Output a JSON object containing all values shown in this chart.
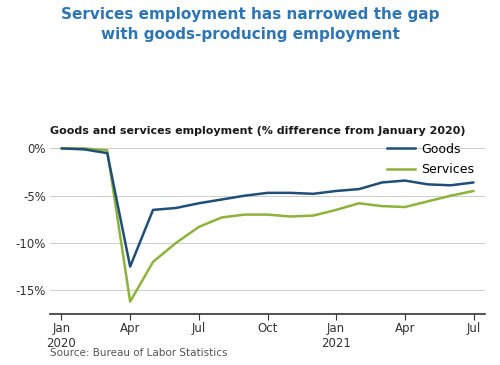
{
  "title": "Services employment has narrowed the gap\nwith goods-producing employment",
  "subtitle": "Goods and services employment (% difference from January 2020)",
  "source": "Source: Bureau of Labor Statistics",
  "title_color": "#2E75B6",
  "subtitle_color": "#1a1a1a",
  "background_color": "#FFFFFF",
  "goods_color": "#1F4E79",
  "services_color": "#8DB33A",
  "x_tick_labels": [
    "Jan\n2020",
    "Apr",
    "Jul",
    "Oct",
    "Jan\n2021",
    "Apr",
    "Jul"
  ],
  "x_tick_positions": [
    0,
    3,
    6,
    9,
    12,
    15,
    18
  ],
  "ylim": [
    -17.5,
    1.8
  ],
  "yticks": [
    0,
    -5,
    -10,
    -15
  ],
  "ytick_labels": [
    "0%",
    "-5%",
    "-10%",
    "-15%"
  ],
  "goods_data": {
    "x": [
      0,
      1,
      2,
      3,
      4,
      5,
      6,
      7,
      8,
      9,
      10,
      11,
      12,
      13,
      14,
      15,
      16,
      17,
      18
    ],
    "y": [
      0.0,
      -0.1,
      -0.5,
      -12.5,
      -6.5,
      -6.3,
      -5.8,
      -5.4,
      -5.0,
      -4.7,
      -4.7,
      -4.8,
      -4.5,
      -4.3,
      -3.6,
      -3.4,
      -3.8,
      -3.9,
      -3.6
    ]
  },
  "services_data": {
    "x": [
      0,
      1,
      2,
      3,
      4,
      5,
      6,
      7,
      8,
      9,
      10,
      11,
      12,
      13,
      14,
      15,
      16,
      17,
      18
    ],
    "y": [
      0.0,
      0.0,
      -0.2,
      -16.2,
      -12.0,
      -10.0,
      -8.3,
      -7.3,
      -7.0,
      -7.0,
      -7.2,
      -7.1,
      -6.5,
      -5.8,
      -6.1,
      -6.2,
      -5.6,
      -5.0,
      -4.5
    ]
  },
  "legend_entries": [
    "Goods",
    "Services"
  ],
  "line_width": 1.8
}
